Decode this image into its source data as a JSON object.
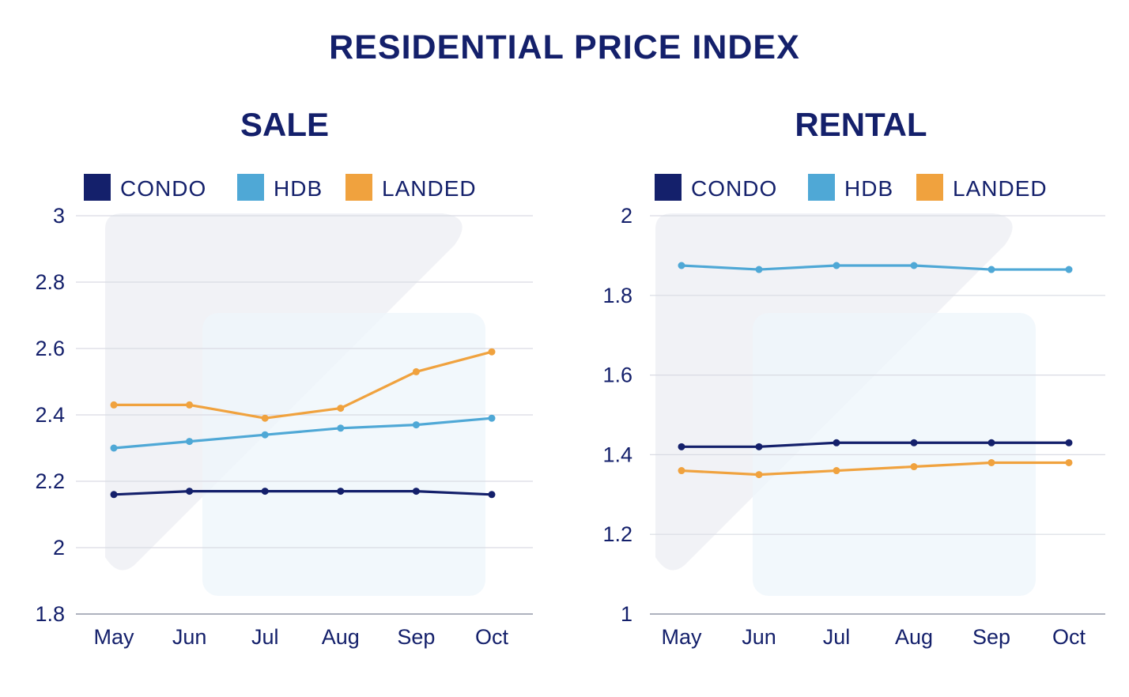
{
  "title": "RESIDENTIAL PRICE INDEX",
  "colors": {
    "condo": "#14206b",
    "hdb": "#4fa8d6",
    "landed": "#f0a23e",
    "grid": "#d9dbe3",
    "axis": "#aeb2be"
  },
  "chart_data": [
    {
      "type": "line",
      "title": "SALE",
      "categories": [
        "May",
        "Jun",
        "Jul",
        "Aug",
        "Sep",
        "Oct"
      ],
      "ylim": [
        1.8,
        3
      ],
      "yticks": [
        "1.8",
        "2",
        "2.2",
        "2.4",
        "2.6",
        "2.8",
        "3"
      ],
      "grid": true,
      "legend_position": "top-left",
      "series": [
        {
          "name": "CONDO",
          "color": "#14206b",
          "values": [
            2.16,
            2.17,
            2.17,
            2.17,
            2.17,
            2.16
          ]
        },
        {
          "name": "HDB",
          "color": "#4fa8d6",
          "values": [
            2.3,
            2.32,
            2.34,
            2.36,
            2.37,
            2.39
          ]
        },
        {
          "name": "LANDED",
          "color": "#f0a23e",
          "values": [
            2.43,
            2.43,
            2.39,
            2.42,
            2.53,
            2.59
          ]
        }
      ]
    },
    {
      "type": "line",
      "title": "RENTAL",
      "categories": [
        "May",
        "Jun",
        "Jul",
        "Aug",
        "Sep",
        "Oct"
      ],
      "ylim": [
        1,
        2
      ],
      "yticks": [
        "1",
        "1.2",
        "1.4",
        "1.6",
        "1.8",
        "2"
      ],
      "grid": true,
      "legend_position": "top-left",
      "series": [
        {
          "name": "CONDO",
          "color": "#14206b",
          "values": [
            1.42,
            1.42,
            1.43,
            1.43,
            1.43,
            1.43
          ]
        },
        {
          "name": "HDB",
          "color": "#4fa8d6",
          "values": [
            1.875,
            1.865,
            1.875,
            1.875,
            1.865,
            1.865
          ]
        },
        {
          "name": "LANDED",
          "color": "#f0a23e",
          "values": [
            1.36,
            1.35,
            1.36,
            1.37,
            1.38,
            1.38
          ]
        }
      ]
    }
  ]
}
